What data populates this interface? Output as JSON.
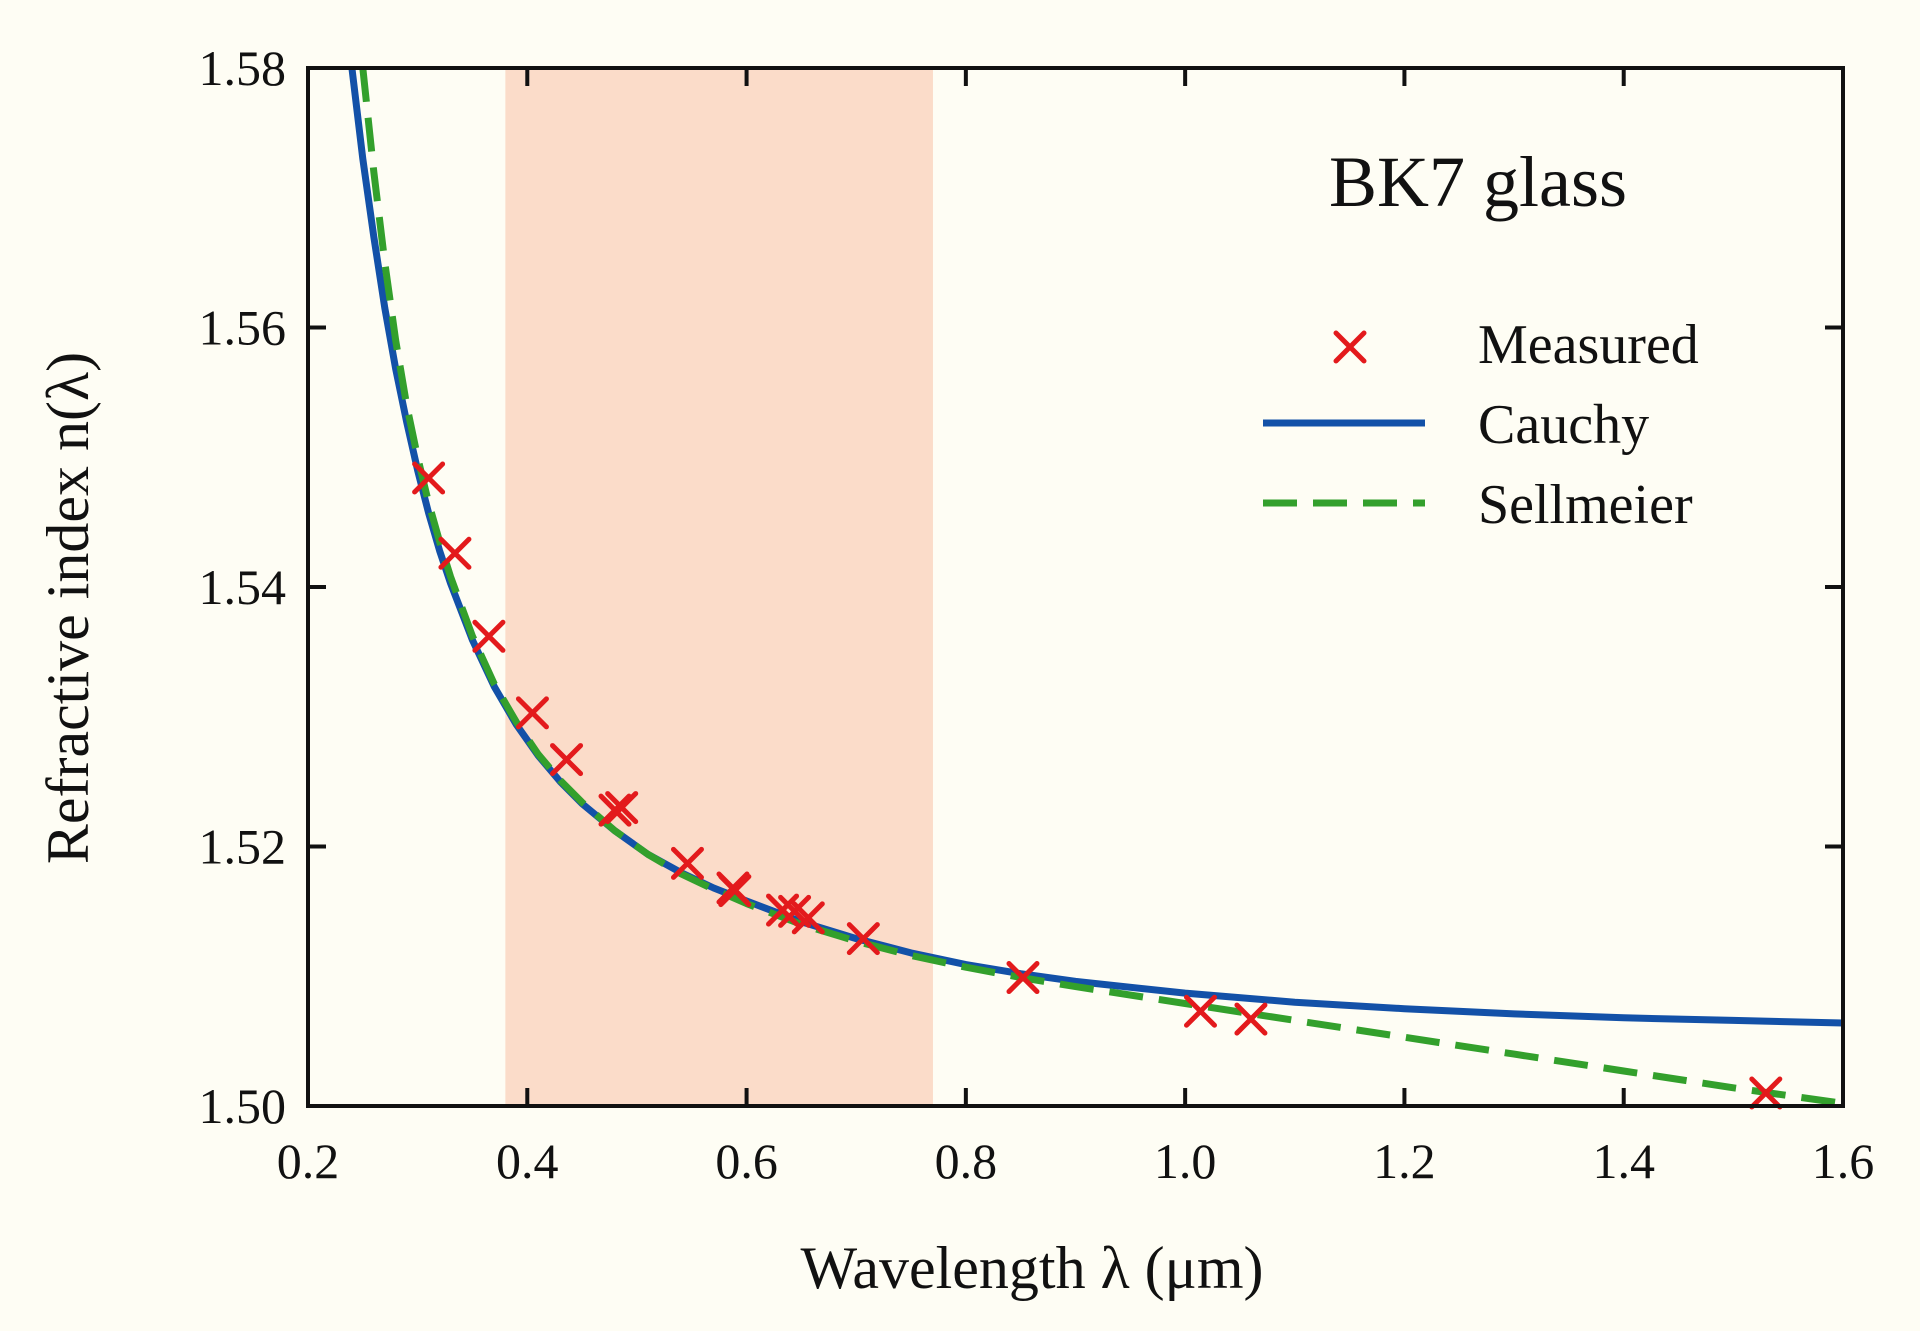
{
  "chart_data": {
    "type": "scatter",
    "title": "BK7 glass",
    "xlabel": "Wavelength λ (μm)",
    "ylabel": "Refractive index n(λ)",
    "xlim": [
      0.2,
      1.6
    ],
    "ylim": [
      1.5,
      1.58
    ],
    "x_ticks": [
      "0.2",
      "0.4",
      "0.6",
      "0.8",
      "1.0",
      "1.2",
      "1.4",
      "1.6"
    ],
    "y_ticks": [
      "1.50",
      "1.52",
      "1.54",
      "1.56",
      "1.58"
    ],
    "grid": false,
    "legend_position": "top-right",
    "shaded_band": {
      "x_range": [
        0.38,
        0.77
      ],
      "color": "#fbdcc9"
    },
    "series": [
      {
        "name": "Measured",
        "kind": "markers",
        "marker": "x",
        "color": "#e31a1c",
        "x": [
          0.31,
          0.334,
          0.365,
          0.4047,
          0.4358,
          0.48,
          0.4861,
          0.5461,
          0.5876,
          0.5893,
          0.6328,
          0.6438,
          0.6563,
          0.7065,
          0.8521,
          1.014,
          1.06,
          1.5296
        ],
        "y": [
          1.5484,
          1.5426,
          1.5362,
          1.5303,
          1.5267,
          1.5228,
          1.523,
          1.5187,
          1.5168,
          1.5166,
          1.5151,
          1.515,
          1.5145,
          1.5129,
          1.5099,
          1.5073,
          1.5067,
          1.501
        ]
      },
      {
        "name": "Cauchy",
        "kind": "line",
        "style": "solid",
        "color": "#1351a8",
        "x": [
          0.24,
          0.25,
          0.26,
          0.27,
          0.28,
          0.29,
          0.3,
          0.31,
          0.32,
          0.33,
          0.35,
          0.37,
          0.39,
          0.41,
          0.43,
          0.45,
          0.48,
          0.51,
          0.54,
          0.57,
          0.6,
          0.65,
          0.7,
          0.75,
          0.8,
          0.85,
          0.9,
          1.0,
          1.1,
          1.2,
          1.3,
          1.4,
          1.5,
          1.6
        ],
        "y": [
          1.58,
          1.573,
          1.567,
          1.5615,
          1.5568,
          1.5527,
          1.549,
          1.5457,
          1.5428,
          1.5403,
          1.5359,
          1.5323,
          1.5294,
          1.527,
          1.525,
          1.5233,
          1.5212,
          1.5194,
          1.518,
          1.5168,
          1.5158,
          1.5142,
          1.5129,
          1.5118,
          1.5109,
          1.5102,
          1.5096,
          1.5087,
          1.508,
          1.5075,
          1.5071,
          1.5068,
          1.5066,
          1.5064
        ]
      },
      {
        "name": "Sellmeier",
        "kind": "line",
        "style": "dashed",
        "color": "#33a02c",
        "x": [
          0.25,
          0.26,
          0.27,
          0.28,
          0.29,
          0.3,
          0.31,
          0.32,
          0.33,
          0.35,
          0.37,
          0.39,
          0.41,
          0.43,
          0.45,
          0.48,
          0.51,
          0.54,
          0.57,
          0.6,
          0.65,
          0.7,
          0.75,
          0.8,
          0.85,
          0.9,
          1.0,
          1.1,
          1.2,
          1.3,
          1.4,
          1.5,
          1.6
        ],
        "y": [
          1.58,
          1.572,
          1.565,
          1.559,
          1.554,
          1.55,
          1.5465,
          1.5435,
          1.5408,
          1.5362,
          1.5325,
          1.5296,
          1.5271,
          1.5251,
          1.5234,
          1.5212,
          1.5194,
          1.5179,
          1.5167,
          1.5156,
          1.514,
          1.5127,
          1.5116,
          1.5107,
          1.5099,
          1.5092,
          1.5079,
          1.5066,
          1.5053,
          1.504,
          1.5027,
          1.5014,
          1.5002
        ]
      }
    ]
  }
}
